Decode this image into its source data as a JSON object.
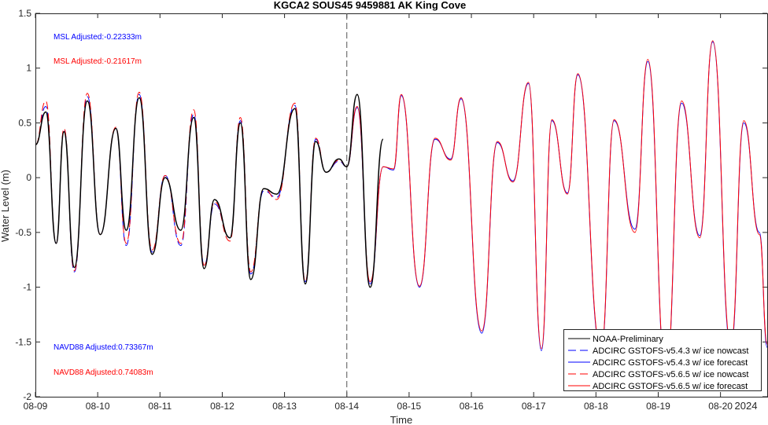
{
  "chart_data": {
    "type": "line",
    "title": "KGCA2 SOUS45 9459881 AK King Cove",
    "xlabel": "Time",
    "ylabel": "Water Level (m)",
    "year_label": "2024",
    "xlim": [
      "08-09",
      "08-20 18:00"
    ],
    "ylim": [
      -2,
      1.5
    ],
    "x_ticks": [
      "08-09",
      "08-10",
      "08-11",
      "08-12",
      "08-13",
      "08-14",
      "08-15",
      "08-16",
      "08-17",
      "08-18",
      "08-19",
      "08-20"
    ],
    "y_ticks": [
      "1.5",
      "1",
      "0.5",
      "0",
      "-0.5",
      "-1",
      "-1.5",
      "-2"
    ],
    "grid": false,
    "nowcast_forecast_divider": "08-14",
    "legend_position": "bottom-right",
    "annotations": {
      "msl_1": "MSL Adjusted:-0.22333m",
      "msl_2": "MSL Adjusted:-0.21617m",
      "navd_1": "NAVD88 Adjusted:0.73367m",
      "navd_2": "NAVD88 Adjusted:0.74083m"
    },
    "series": [
      {
        "name": "NOAA-Preliminary",
        "color": "#000000",
        "dash": "solid",
        "x": [
          "08-09 00:00",
          "08-09 04:00",
          "08-09 08:00",
          "08-09 11:00",
          "08-09 15:00",
          "08-09 20:00",
          "08-10 01:00",
          "08-10 07:00",
          "08-10 11:00",
          "08-10 16:00",
          "08-10 21:00",
          "08-11 02:00",
          "08-11 08:00",
          "08-11 13:00",
          "08-11 17:00",
          "08-11 21:00",
          "08-12 03:00",
          "08-12 07:00",
          "08-12 11:00",
          "08-12 16:00",
          "08-12 21:00",
          "08-13 04:00",
          "08-13 08:00",
          "08-13 12:00",
          "08-13 16:00",
          "08-13 21:00",
          "08-14 00:00",
          "08-14 04:00",
          "08-14 09:00",
          "08-14 14:00"
        ],
        "y": [
          0.3,
          0.6,
          -0.6,
          0.42,
          -0.82,
          0.7,
          -0.52,
          0.45,
          -0.48,
          0.73,
          -0.7,
          0.0,
          -0.48,
          0.55,
          -0.83,
          -0.2,
          -0.55,
          0.5,
          -0.93,
          -0.1,
          -0.15,
          0.63,
          -0.97,
          0.33,
          0.05,
          0.17,
          0.1,
          0.76,
          -1.0,
          0.35
        ]
      },
      {
        "name": "ADCIRC GSTOFS-v5.4.3 w/ ice nowcast",
        "color": "#0000ff",
        "dash": "dashed",
        "x": [
          "08-09 00:00",
          "08-09 04:00",
          "08-09 08:00",
          "08-09 11:00",
          "08-09 15:00",
          "08-09 20:00",
          "08-10 01:00",
          "08-10 07:00",
          "08-10 11:00",
          "08-10 16:00",
          "08-10 21:00",
          "08-11 02:00",
          "08-11 08:00",
          "08-11 13:00",
          "08-11 17:00",
          "08-11 21:00",
          "08-12 03:00",
          "08-12 07:00",
          "08-12 11:00",
          "08-12 16:00",
          "08-12 21:00",
          "08-13 04:00",
          "08-13 08:00",
          "08-13 12:00",
          "08-13 16:00",
          "08-13 21:00",
          "08-14 00:00"
        ],
        "y": [
          0.3,
          0.65,
          -0.6,
          0.44,
          -0.86,
          0.74,
          -0.52,
          0.45,
          -0.62,
          0.76,
          -0.68,
          0.02,
          -0.62,
          0.58,
          -0.8,
          -0.24,
          -0.55,
          0.52,
          -0.88,
          -0.12,
          -0.18,
          0.66,
          -0.95,
          0.35,
          0.05,
          0.15,
          0.1
        ]
      },
      {
        "name": "ADCIRC GSTOFS-v5.4.3 w/ ice forecast",
        "color": "#0000ff",
        "dash": "solid",
        "x": [
          "08-14 00:00",
          "08-14 04:00",
          "08-14 09:00",
          "08-14 14:00",
          "08-14 18:00",
          "08-14 21:00",
          "08-15 04:00",
          "08-15 10:00",
          "08-15 16:00",
          "08-15 20:00",
          "08-16 04:00",
          "08-16 10:00",
          "08-16 16:00",
          "08-16 22:00",
          "08-17 03:00",
          "08-17 07:00",
          "08-17 13:00",
          "08-17 17:00",
          "08-18 02:00",
          "08-18 07:00",
          "08-18 15:00",
          "08-18 20:00",
          "08-19 03:00",
          "08-19 09:00",
          "08-19 16:00",
          "08-19 21:00",
          "08-20 04:00",
          "08-20 09:00",
          "08-20 15:00",
          "08-20 18:00"
        ],
        "y": [
          0.1,
          0.64,
          -0.97,
          0.1,
          0.07,
          0.75,
          -1.0,
          0.35,
          0.17,
          0.72,
          -1.42,
          0.32,
          -0.03,
          0.86,
          -1.58,
          0.52,
          -0.14,
          0.94,
          -1.58,
          0.52,
          -0.47,
          1.06,
          -1.8,
          0.68,
          -0.53,
          1.24,
          -1.55,
          0.5,
          -0.5,
          -1.55
        ]
      },
      {
        "name": "ADCIRC GSTOFS-v5.6.5 w/ ice nowcast",
        "color": "#ff0000",
        "dash": "dashed",
        "x": [
          "08-09 00:00",
          "08-09 04:00",
          "08-09 08:00",
          "08-09 11:00",
          "08-09 15:00",
          "08-09 20:00",
          "08-10 01:00",
          "08-10 07:00",
          "08-10 11:00",
          "08-10 16:00",
          "08-10 21:00",
          "08-11 02:00",
          "08-11 08:00",
          "08-11 13:00",
          "08-11 17:00",
          "08-11 21:00",
          "08-12 03:00",
          "08-12 07:00",
          "08-12 11:00",
          "08-12 16:00",
          "08-12 21:00",
          "08-13 04:00",
          "08-13 08:00",
          "08-13 12:00",
          "08-13 16:00",
          "08-13 21:00",
          "08-14 00:00"
        ],
        "y": [
          0.3,
          0.7,
          -0.6,
          0.45,
          -0.85,
          0.77,
          -0.52,
          0.46,
          -0.6,
          0.78,
          -0.66,
          0.02,
          -0.6,
          0.62,
          -0.8,
          -0.22,
          -0.58,
          0.55,
          -0.86,
          -0.1,
          -0.2,
          0.68,
          -0.95,
          0.36,
          0.05,
          0.16,
          0.1
        ]
      },
      {
        "name": "ADCIRC GSTOFS-v5.6.5 w/ ice forecast",
        "color": "#ff0000",
        "dash": "solid",
        "x": [
          "08-14 00:00",
          "08-14 04:00",
          "08-14 09:00",
          "08-14 14:00",
          "08-14 18:00",
          "08-14 21:00",
          "08-15 04:00",
          "08-15 10:00",
          "08-15 16:00",
          "08-15 20:00",
          "08-16 04:00",
          "08-16 10:00",
          "08-16 16:00",
          "08-16 22:00",
          "08-17 03:00",
          "08-17 07:00",
          "08-17 13:00",
          "08-17 17:00",
          "08-18 02:00",
          "08-18 07:00",
          "08-18 15:00",
          "08-18 20:00",
          "08-19 03:00",
          "08-19 09:00",
          "08-19 16:00",
          "08-19 21:00",
          "08-20 04:00",
          "08-20 09:00",
          "08-20 15:00",
          "08-20 18:00"
        ],
        "y": [
          0.1,
          0.65,
          -0.95,
          0.1,
          0.08,
          0.76,
          -0.99,
          0.36,
          0.16,
          0.73,
          -1.4,
          0.33,
          -0.04,
          0.87,
          -1.56,
          0.53,
          -0.15,
          0.95,
          -1.56,
          0.53,
          -0.5,
          1.08,
          -1.78,
          0.7,
          -0.55,
          1.25,
          -1.52,
          0.52,
          -0.52,
          -1.52
        ]
      }
    ]
  }
}
